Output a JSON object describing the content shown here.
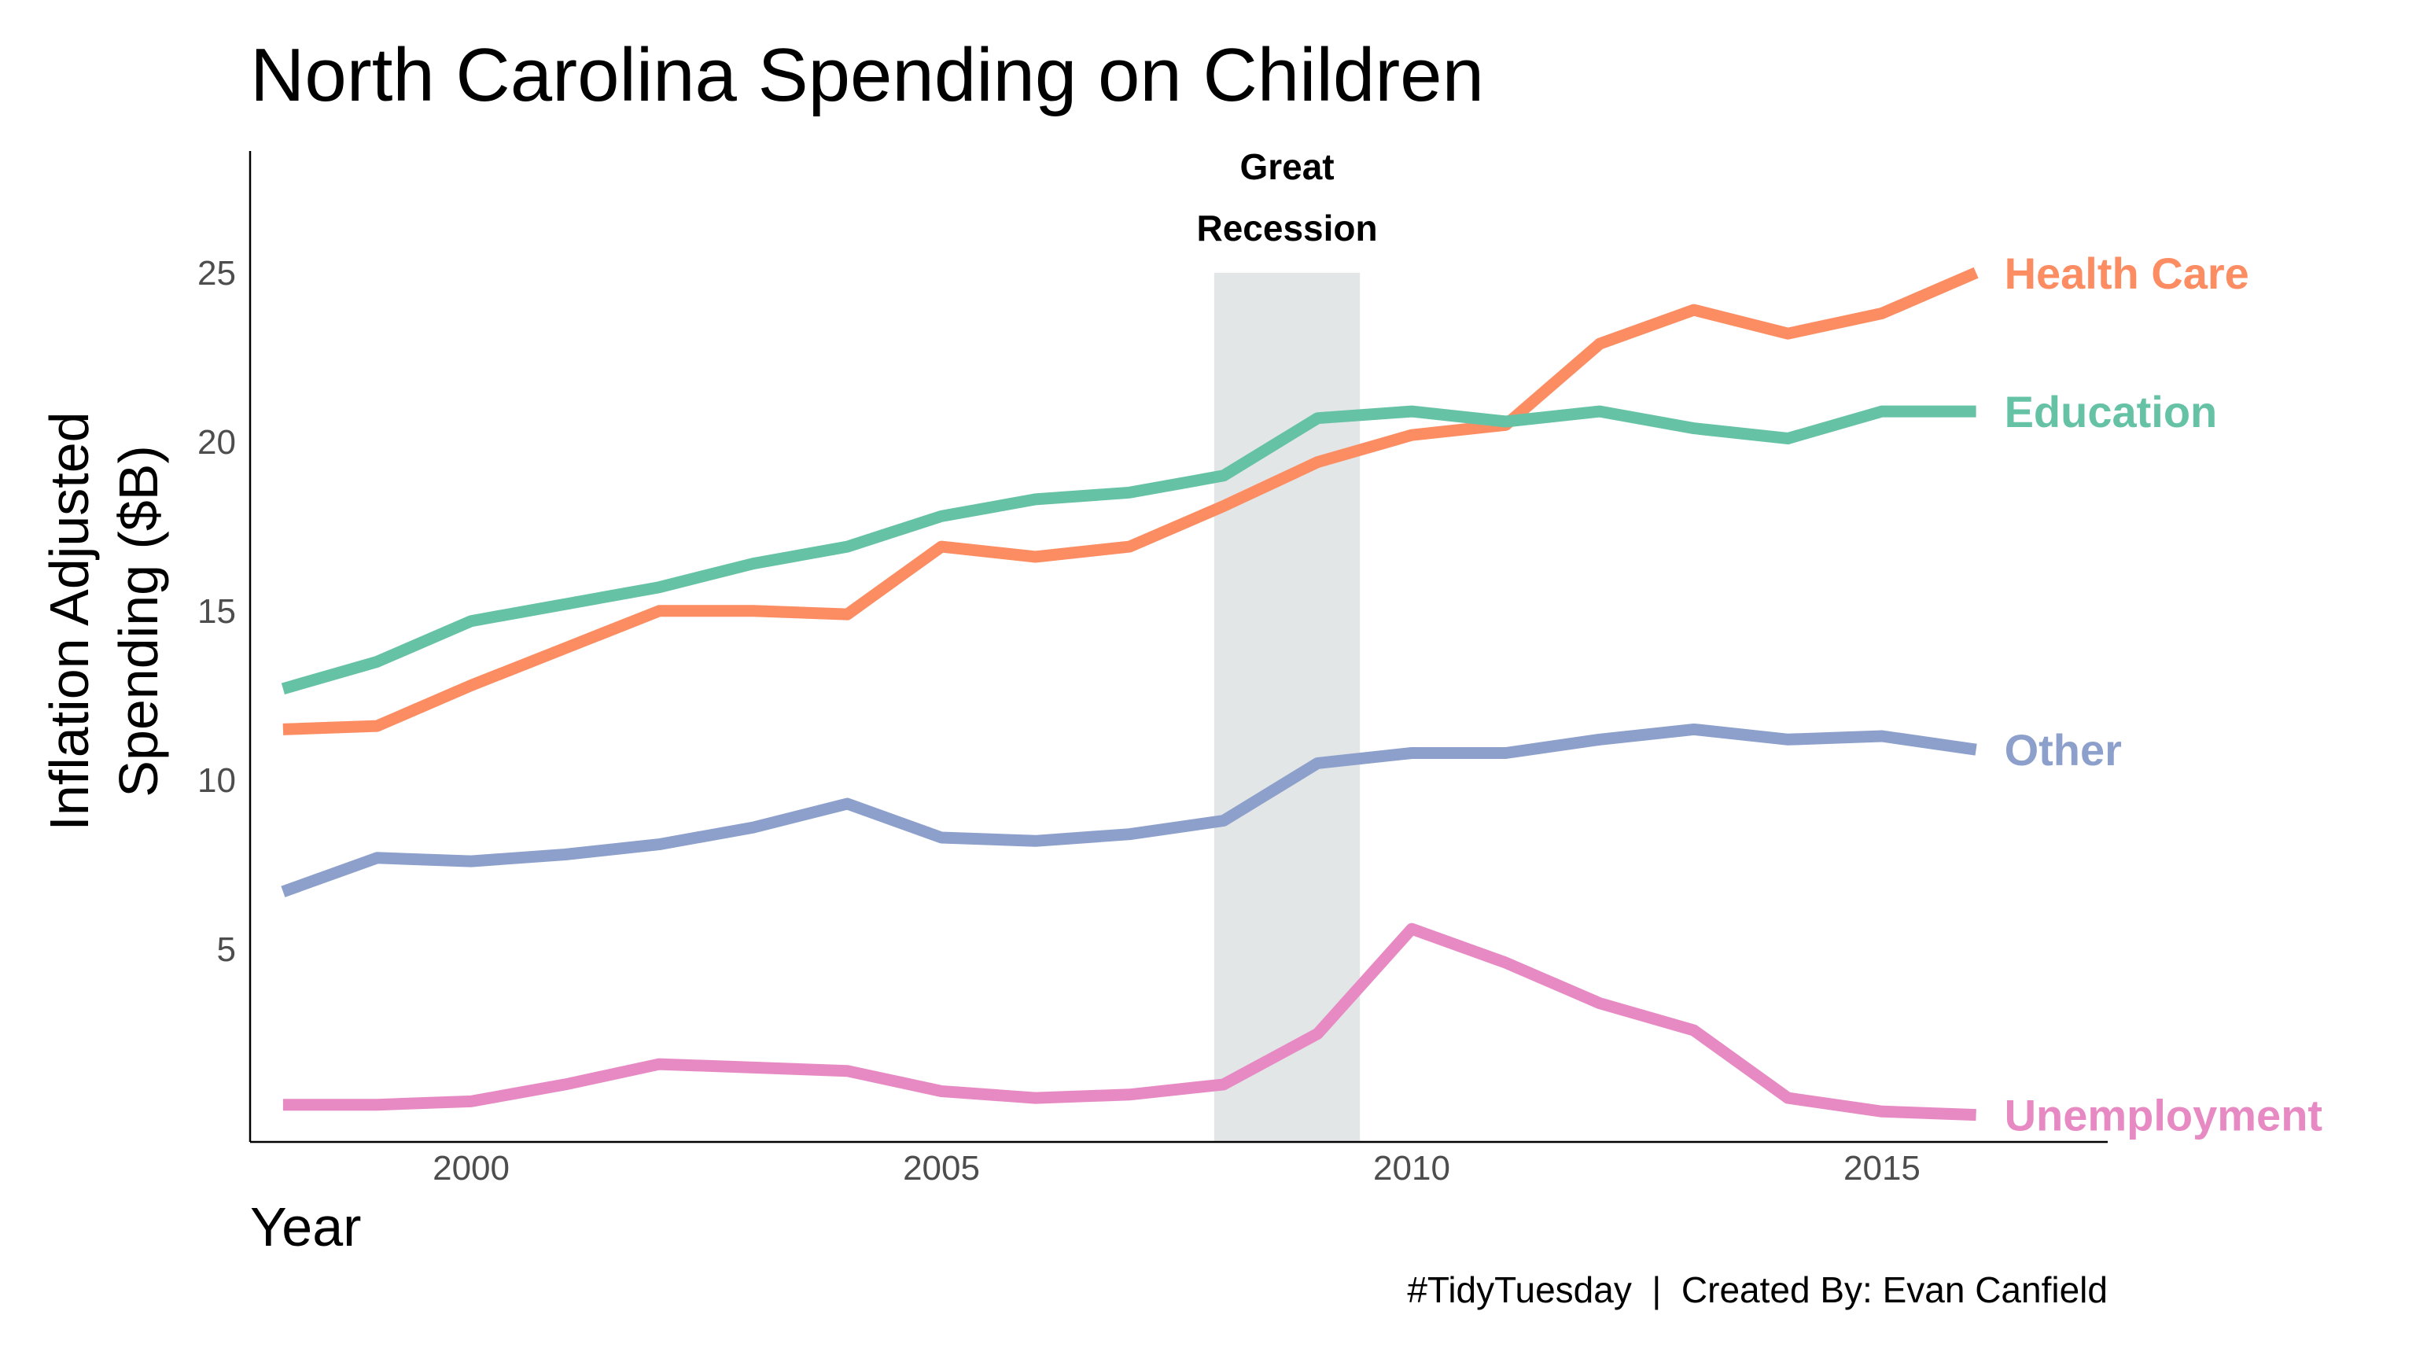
{
  "chart_data": {
    "type": "line",
    "title": "North Carolina Spending on Children",
    "xlabel": "Year",
    "ylabel_lines": [
      "Inflation Adjusted",
      "Spending ($B)"
    ],
    "xlim": [
      1997.65,
      2017.4
    ],
    "ylim": [
      -0.7,
      28.6
    ],
    "xticks": [
      2000,
      2005,
      2010,
      2015
    ],
    "yticks": [
      5,
      10,
      15,
      20,
      25
    ],
    "grid": false,
    "legend": "direct labels at line ends",
    "x": [
      1998,
      1999,
      2000,
      2001,
      2002,
      2003,
      2004,
      2005,
      2006,
      2007,
      2008,
      2009,
      2010,
      2011,
      2012,
      2013,
      2014,
      2015,
      2016
    ],
    "series": [
      {
        "name": "Health Care",
        "color": "#FC8D62",
        "values": [
          11.5,
          11.6,
          12.8,
          13.9,
          15.0,
          15.0,
          14.9,
          16.9,
          16.6,
          16.9,
          18.1,
          19.4,
          20.2,
          20.5,
          22.9,
          23.9,
          23.2,
          23.8,
          25.0
        ]
      },
      {
        "name": "Education",
        "color": "#66C2A5",
        "values": [
          12.7,
          13.5,
          14.7,
          15.2,
          15.7,
          16.4,
          16.9,
          17.8,
          18.3,
          18.5,
          19.0,
          20.7,
          20.9,
          20.6,
          20.9,
          20.4,
          20.1,
          20.9,
          20.9
        ]
      },
      {
        "name": "Other",
        "color": "#8DA0CB",
        "values": [
          6.7,
          7.7,
          7.6,
          7.8,
          8.1,
          8.6,
          9.3,
          8.3,
          8.2,
          8.4,
          8.8,
          10.5,
          10.8,
          10.8,
          11.2,
          11.5,
          11.2,
          11.3,
          10.9
        ]
      },
      {
        "name": "Unemployment",
        "color": "#E78AC3",
        "values": [
          0.4,
          0.4,
          0.5,
          1.0,
          1.6,
          1.5,
          1.4,
          0.8,
          0.6,
          0.7,
          1.0,
          2.5,
          5.6,
          4.6,
          3.4,
          2.6,
          0.6,
          0.2,
          0.1
        ]
      }
    ],
    "annotations": [
      {
        "type": "shaded-band",
        "x_range": [
          2007.9,
          2009.45
        ],
        "y_top": 25,
        "color": "#E3E6E7",
        "label_lines": [
          "Great",
          "Recession"
        ]
      }
    ],
    "caption": "#TidyTuesday  |  Created By: Evan Canfield"
  }
}
